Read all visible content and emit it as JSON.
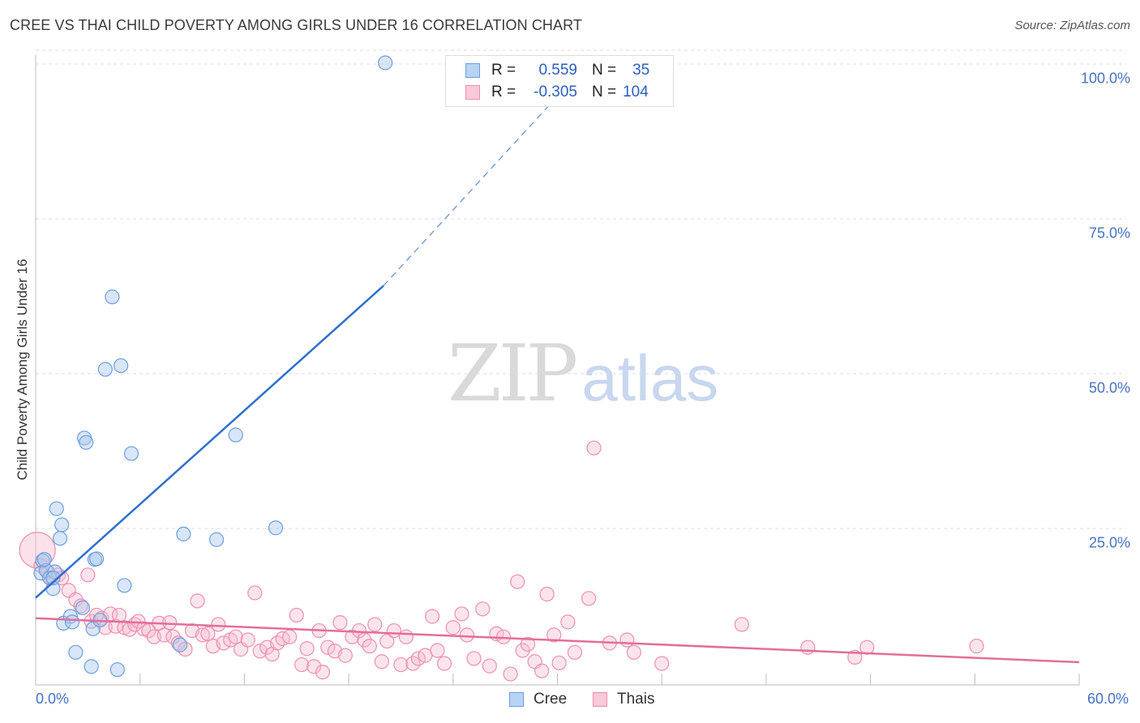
{
  "title": "CREE VS THAI CHILD POVERTY AMONG GIRLS UNDER 16 CORRELATION CHART",
  "source": "Source: ZipAtlas.com",
  "watermark": {
    "zip": "ZIP",
    "atlas": "atlas"
  },
  "legend": {
    "cree": {
      "r_label": "R =",
      "r_value": "0.559",
      "n_label": "N =",
      "n_value": "35"
    },
    "thai": {
      "r_label": "R =",
      "r_value": "-0.305",
      "n_label": "N =",
      "n_value": "104"
    }
  },
  "bottom_legend": {
    "cree": "Cree",
    "thai": "Thais"
  },
  "colors": {
    "cree_fill": "#a9c8f0",
    "cree_stroke": "#6d9ee0",
    "cree_line": "#2f6fce",
    "thai_fill": "#f7bccf",
    "thai_stroke": "#ee8fb0",
    "thai_line": "#e36e9a",
    "tick_text": "#4472c4",
    "grid": "#dddddd"
  },
  "chart_data": {
    "type": "scatter",
    "title": "CREE VS THAI CHILD POVERTY AMONG GIRLS UNDER 16 CORRELATION CHART",
    "xlabel": "",
    "ylabel": "Child Poverty Among Girls Under 16",
    "xlim": [
      0,
      60
    ],
    "ylim": [
      0,
      105
    ],
    "x_tick_labels": [
      "0.0%",
      "60.0%"
    ],
    "y_ticks": [
      25,
      50,
      75,
      100
    ],
    "y_tick_labels": [
      "25.0%",
      "50.0%",
      "75.0%",
      "100.0%"
    ],
    "series": [
      {
        "name": "Cree",
        "points": [
          [
            0.3,
            17.8
          ],
          [
            0.4,
            19.8
          ],
          [
            0.6,
            18.2
          ],
          [
            0.8,
            17.0
          ],
          [
            1.0,
            15.3
          ],
          [
            1.1,
            18.0
          ],
          [
            1.2,
            28.2
          ],
          [
            1.4,
            23.4
          ],
          [
            1.5,
            25.6
          ],
          [
            1.6,
            9.7
          ],
          [
            2.0,
            10.8
          ],
          [
            2.1,
            9.9
          ],
          [
            2.3,
            5.0
          ],
          [
            2.7,
            12.2
          ],
          [
            2.8,
            39.6
          ],
          [
            2.9,
            38.9
          ],
          [
            3.2,
            2.7
          ],
          [
            3.3,
            8.8
          ],
          [
            3.4,
            20.0
          ],
          [
            3.5,
            20.1
          ],
          [
            3.7,
            10.2
          ],
          [
            4.0,
            50.7
          ],
          [
            4.4,
            62.4
          ],
          [
            4.7,
            2.2
          ],
          [
            4.9,
            51.3
          ],
          [
            5.1,
            15.8
          ],
          [
            5.5,
            37.1
          ],
          [
            8.3,
            6.2
          ],
          [
            8.5,
            24.1
          ],
          [
            10.4,
            23.2
          ],
          [
            11.5,
            40.1
          ],
          [
            13.8,
            25.1
          ],
          [
            20.1,
            100.2
          ],
          [
            0.5,
            20.0
          ],
          [
            1.0,
            17.0
          ]
        ],
        "trend": {
          "x": [
            0.0,
            20.0
          ],
          "y": [
            13.8,
            64.2
          ],
          "dashed_to": {
            "x": 31.7,
            "y": 100.0
          }
        }
      },
      {
        "name": "Thais",
        "points": [
          [
            0.1,
            21.5
          ],
          [
            0.3,
            19.0
          ],
          [
            0.7,
            18.0
          ],
          [
            0.9,
            17.0
          ],
          [
            1.3,
            17.5
          ],
          [
            1.5,
            17.0
          ],
          [
            1.9,
            15.0
          ],
          [
            2.3,
            13.5
          ],
          [
            2.6,
            12.5
          ],
          [
            3.0,
            17.5
          ],
          [
            3.2,
            10.0
          ],
          [
            3.5,
            11.0
          ],
          [
            3.8,
            10.5
          ],
          [
            4.0,
            9.0
          ],
          [
            4.3,
            11.2
          ],
          [
            4.6,
            9.2
          ],
          [
            4.8,
            11.0
          ],
          [
            5.1,
            9.0
          ],
          [
            5.4,
            8.7
          ],
          [
            5.7,
            9.5
          ],
          [
            5.9,
            10.0
          ],
          [
            6.2,
            8.8
          ],
          [
            6.5,
            8.5
          ],
          [
            6.8,
            7.5
          ],
          [
            7.1,
            9.7
          ],
          [
            7.4,
            7.8
          ],
          [
            7.7,
            9.8
          ],
          [
            7.9,
            7.5
          ],
          [
            8.2,
            6.5
          ],
          [
            8.6,
            5.5
          ],
          [
            9.0,
            8.5
          ],
          [
            9.3,
            13.3
          ],
          [
            9.6,
            7.8
          ],
          [
            9.9,
            8.0
          ],
          [
            10.2,
            6.0
          ],
          [
            10.5,
            9.5
          ],
          [
            10.8,
            6.5
          ],
          [
            11.2,
            7.0
          ],
          [
            11.5,
            7.5
          ],
          [
            11.8,
            5.5
          ],
          [
            12.2,
            7.0
          ],
          [
            12.6,
            14.6
          ],
          [
            12.9,
            5.2
          ],
          [
            13.3,
            5.8
          ],
          [
            13.6,
            4.7
          ],
          [
            13.9,
            6.5
          ],
          [
            14.2,
            7.2
          ],
          [
            14.6,
            7.5
          ],
          [
            15.0,
            11.0
          ],
          [
            15.3,
            3.0
          ],
          [
            15.6,
            5.6
          ],
          [
            16.0,
            2.7
          ],
          [
            16.3,
            8.5
          ],
          [
            16.5,
            1.8
          ],
          [
            16.8,
            5.8
          ],
          [
            17.2,
            5.2
          ],
          [
            17.5,
            9.8
          ],
          [
            17.8,
            4.5
          ],
          [
            18.2,
            7.5
          ],
          [
            18.6,
            8.5
          ],
          [
            18.9,
            7.0
          ],
          [
            19.2,
            6.0
          ],
          [
            19.5,
            9.5
          ],
          [
            19.9,
            3.5
          ],
          [
            20.2,
            6.8
          ],
          [
            20.6,
            8.5
          ],
          [
            21.0,
            3.0
          ],
          [
            21.3,
            7.5
          ],
          [
            21.7,
            3.2
          ],
          [
            22.0,
            4.0
          ],
          [
            22.4,
            4.5
          ],
          [
            22.8,
            10.8
          ],
          [
            23.1,
            5.3
          ],
          [
            23.5,
            3.2
          ],
          [
            24.0,
            9.0
          ],
          [
            24.5,
            11.2
          ],
          [
            24.8,
            7.8
          ],
          [
            25.2,
            4.0
          ],
          [
            25.7,
            12.0
          ],
          [
            26.1,
            2.8
          ],
          [
            26.5,
            8.0
          ],
          [
            26.9,
            7.5
          ],
          [
            27.3,
            1.5
          ],
          [
            27.7,
            16.4
          ],
          [
            28.0,
            5.3
          ],
          [
            28.3,
            6.3
          ],
          [
            28.7,
            3.5
          ],
          [
            29.1,
            2.0
          ],
          [
            29.4,
            14.4
          ],
          [
            29.8,
            7.8
          ],
          [
            30.1,
            3.3
          ],
          [
            30.6,
            9.9
          ],
          [
            31.0,
            5.0
          ],
          [
            31.8,
            13.7
          ],
          [
            32.1,
            38.0
          ],
          [
            33.0,
            6.5
          ],
          [
            34.0,
            7.0
          ],
          [
            34.4,
            5.0
          ],
          [
            36.0,
            3.2
          ],
          [
            40.6,
            9.5
          ],
          [
            44.4,
            5.8
          ],
          [
            47.1,
            4.2
          ],
          [
            47.8,
            5.8
          ],
          [
            54.1,
            6.0
          ]
        ],
        "trend": {
          "x": [
            0.0,
            60.0
          ],
          "y": [
            10.5,
            3.4
          ]
        }
      }
    ]
  }
}
